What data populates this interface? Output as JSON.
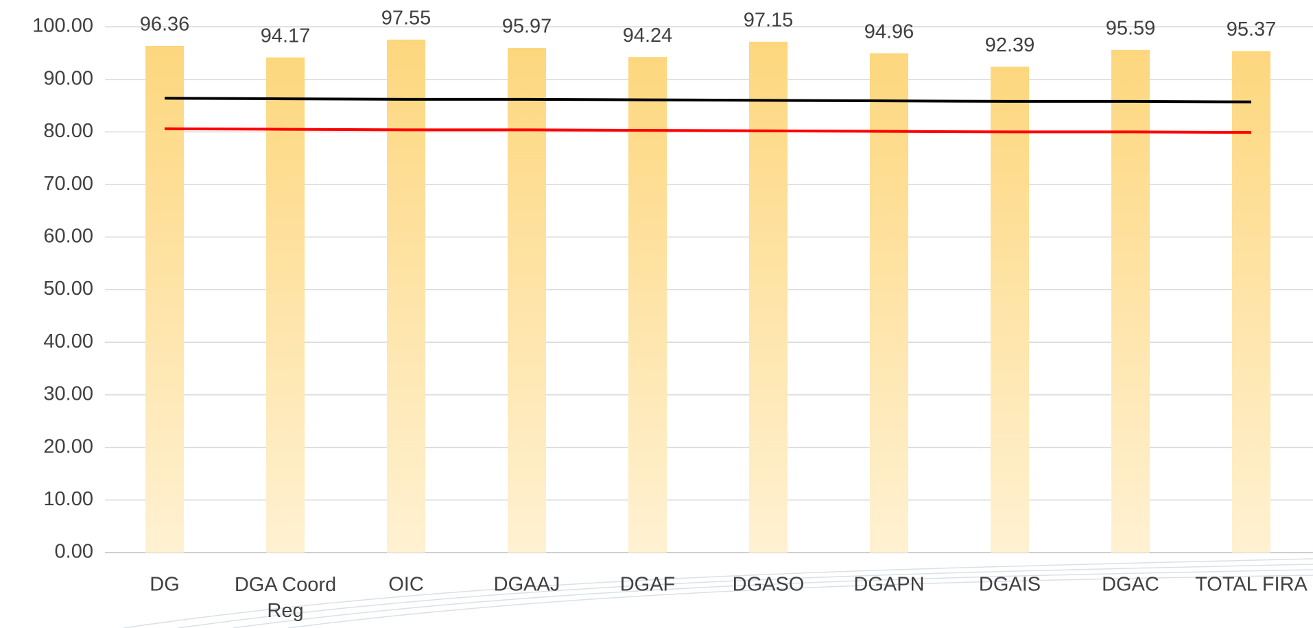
{
  "chart_data": {
    "type": "bar",
    "categories": [
      "DG",
      "DGA Coord Reg",
      "OIC",
      "DGAAJ",
      "DGAF",
      "DGASO",
      "DGAPN",
      "DGAIS",
      "DGAC",
      "TOTAL FIRA"
    ],
    "values": [
      96.36,
      94.17,
      97.55,
      95.97,
      94.24,
      97.15,
      94.96,
      92.39,
      95.59,
      95.37
    ],
    "color": "#fdd77e",
    "lines": [
      {
        "color": "#000000",
        "values": [
          86.4,
          86.3,
          86.2,
          86.2,
          86.1,
          86.0,
          85.9,
          85.8,
          85.8,
          85.7
        ]
      },
      {
        "color": "#ff0000",
        "values": [
          80.6,
          80.5,
          80.4,
          80.4,
          80.3,
          80.2,
          80.1,
          80.0,
          80.0,
          79.9
        ]
      }
    ],
    "ylim": [
      0,
      100
    ],
    "yticks": [
      {
        "value": 0,
        "label": "0.00"
      },
      {
        "value": 10,
        "label": "10.00"
      },
      {
        "value": 20,
        "label": "20.00"
      },
      {
        "value": 30,
        "label": "30.00"
      },
      {
        "value": 40,
        "label": "40.00"
      },
      {
        "value": 50,
        "label": "50.00"
      },
      {
        "value": 60,
        "label": "60.00"
      },
      {
        "value": 70,
        "label": "70.00"
      },
      {
        "value": 80,
        "label": "80.00"
      },
      {
        "value": 90,
        "label": "90.00"
      },
      {
        "value": 100,
        "label": "100.00"
      }
    ],
    "grid": true
  }
}
